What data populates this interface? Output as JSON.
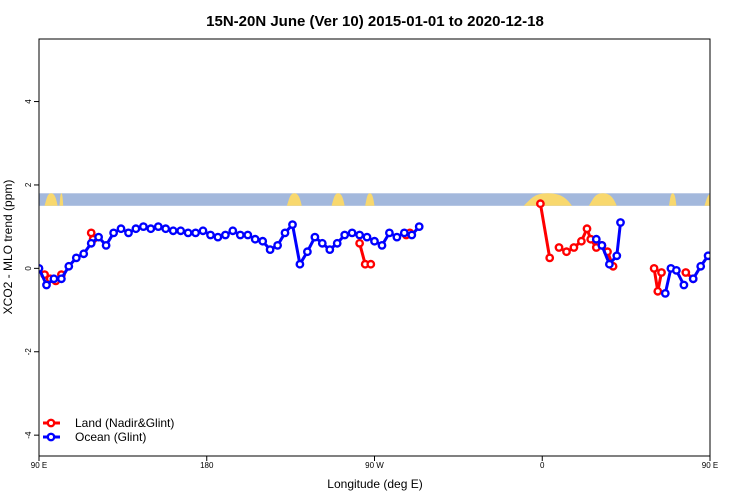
{
  "chart_data": {
    "type": "line",
    "title": "15N-20N June (Ver 10)   2015-01-01 to 2020-12-18",
    "xlabel": "Longitude (deg E)",
    "ylabel": "XCO2 - MLO trend (ppm)",
    "xlim": [
      90,
      450
    ],
    "ylim": [
      -4.5,
      5.5
    ],
    "x_ticks": [
      {
        "value": 90,
        "label": "90 E"
      },
      {
        "value": 180,
        "label": "180"
      },
      {
        "value": 270,
        "label": "90 W"
      },
      {
        "value": 360,
        "label": "0"
      },
      {
        "value": 450,
        "label": "90 E"
      },
      {
        "value": 540,
        "label": "180"
      }
    ],
    "y_ticks": [
      {
        "value": -4,
        "label": "-4"
      },
      {
        "value": -2,
        "label": "-2"
      },
      {
        "value": 0,
        "label": "0"
      },
      {
        "value": 2,
        "label": "2"
      },
      {
        "value": 4,
        "label": "4"
      }
    ],
    "grid": false,
    "legend_position": "bottom-left",
    "map_strip": {
      "y_min": 1.5,
      "y_max": 1.8,
      "ocean_color": "#a3b8dc",
      "land_color": "#f8d86e"
    },
    "series": [
      {
        "name": "Land (Nadir&Glint)",
        "color": "#ff0000",
        "segments": [
          [
            [
              93,
              -0.15
            ],
            [
              96,
              -0.25
            ],
            [
              99,
              -0.3
            ],
            [
              102,
              -0.15
            ]
          ],
          [
            [
              118,
              0.85
            ],
            [
              119,
              0.7
            ]
          ],
          [
            [
              262,
              0.6
            ],
            [
              265,
              0.1
            ],
            [
              268,
              0.1
            ]
          ],
          [
            [
              287,
              0.8
            ],
            [
              289,
              0.85
            ]
          ],
          [
            [
              359,
              1.55
            ],
            [
              364,
              0.25
            ]
          ],
          [
            [
              369,
              0.5
            ],
            [
              373,
              0.4
            ],
            [
              377,
              0.5
            ],
            [
              381,
              0.65
            ],
            [
              384,
              0.95
            ],
            [
              386,
              0.7
            ],
            [
              389,
              0.5
            ],
            [
              392,
              0.55
            ],
            [
              395,
              0.4
            ],
            [
              398,
              0.05
            ]
          ],
          [
            [
              420,
              0.0
            ],
            [
              422,
              -0.55
            ],
            [
              424,
              -0.1
            ]
          ],
          [
            [
              437,
              -0.1
            ],
            [
              441,
              -0.25
            ]
          ],
          [
            [
              453,
              0.85
            ],
            [
              454,
              0.65
            ]
          ]
        ]
      },
      {
        "name": "Ocean (Glint)",
        "color": "#0000ff",
        "segments": [
          [
            [
              90,
              0.0
            ],
            [
              94,
              -0.4
            ],
            [
              98,
              -0.25
            ],
            [
              102,
              -0.25
            ],
            [
              106,
              0.05
            ],
            [
              110,
              0.25
            ],
            [
              114,
              0.35
            ],
            [
              118,
              0.6
            ],
            [
              122,
              0.75
            ],
            [
              126,
              0.55
            ],
            [
              130,
              0.85
            ],
            [
              134,
              0.95
            ],
            [
              138,
              0.85
            ],
            [
              142,
              0.95
            ],
            [
              146,
              1.0
            ],
            [
              150,
              0.95
            ],
            [
              154,
              1.0
            ],
            [
              158,
              0.95
            ],
            [
              162,
              0.9
            ],
            [
              166,
              0.9
            ],
            [
              170,
              0.85
            ],
            [
              174,
              0.85
            ],
            [
              178,
              0.9
            ],
            [
              182,
              0.8
            ],
            [
              186,
              0.75
            ],
            [
              190,
              0.8
            ],
            [
              194,
              0.9
            ],
            [
              198,
              0.8
            ],
            [
              202,
              0.8
            ],
            [
              206,
              0.7
            ],
            [
              210,
              0.65
            ],
            [
              214,
              0.45
            ],
            [
              218,
              0.55
            ],
            [
              222,
              0.85
            ],
            [
              226,
              1.05
            ],
            [
              230,
              0.1
            ],
            [
              234,
              0.4
            ],
            [
              238,
              0.75
            ],
            [
              242,
              0.6
            ],
            [
              246,
              0.45
            ],
            [
              250,
              0.6
            ],
            [
              254,
              0.8
            ],
            [
              258,
              0.85
            ],
            [
              262,
              0.8
            ],
            [
              266,
              0.75
            ],
            [
              270,
              0.65
            ],
            [
              274,
              0.55
            ],
            [
              278,
              0.85
            ],
            [
              282,
              0.75
            ],
            [
              286,
              0.85
            ],
            [
              290,
              0.8
            ],
            [
              294,
              1.0
            ]
          ],
          [
            [
              389,
              0.7
            ],
            [
              392,
              0.55
            ],
            [
              396,
              0.1
            ],
            [
              400,
              0.3
            ],
            [
              402,
              1.1
            ]
          ],
          [
            [
              426,
              -0.6
            ],
            [
              429,
              0.0
            ],
            [
              432,
              -0.05
            ],
            [
              436,
              -0.4
            ]
          ],
          [
            [
              441,
              -0.25
            ],
            [
              445,
              0.05
            ],
            [
              449,
              0.3
            ],
            [
              453,
              0.4
            ],
            [
              457,
              0.8
            ],
            [
              461,
              0.55
            ],
            [
              465,
              0.9
            ],
            [
              469,
              0.95
            ],
            [
              473,
              0.85
            ],
            [
              477,
              1.0
            ],
            [
              481,
              0.95
            ],
            [
              485,
              1.0
            ],
            [
              489,
              0.95
            ],
            [
              493,
              0.9
            ]
          ]
        ]
      }
    ]
  }
}
